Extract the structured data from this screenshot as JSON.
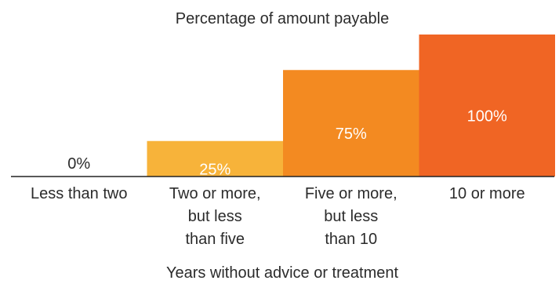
{
  "chart_data": {
    "type": "bar",
    "title": "Percentage of amount payable",
    "xlabel": "Years without advice or treatment",
    "ylabel": "",
    "ylim": [
      0,
      100
    ],
    "grid": false,
    "legend": "none",
    "categories": [
      "Less than two",
      "Two or more, but less than five",
      "Five or more, but less than 10",
      "10 or more"
    ],
    "category_lines": [
      [
        "Less than two"
      ],
      [
        "Two or more,",
        "but less",
        "than five"
      ],
      [
        "Five or more,",
        "but less",
        "than 10"
      ],
      [
        "10 or more"
      ]
    ],
    "values": [
      0,
      25,
      75,
      100
    ],
    "value_labels": [
      "0%",
      "25%",
      "75%",
      "100%"
    ],
    "colors": [
      "#f7b33a",
      "#f7b33a",
      "#f38a21",
      "#f06524"
    ],
    "value_label_colors": [
      "#2b2b2b",
      "#ffffff",
      "#ffffff",
      "#ffffff"
    ],
    "axis_color": "#222222"
  }
}
